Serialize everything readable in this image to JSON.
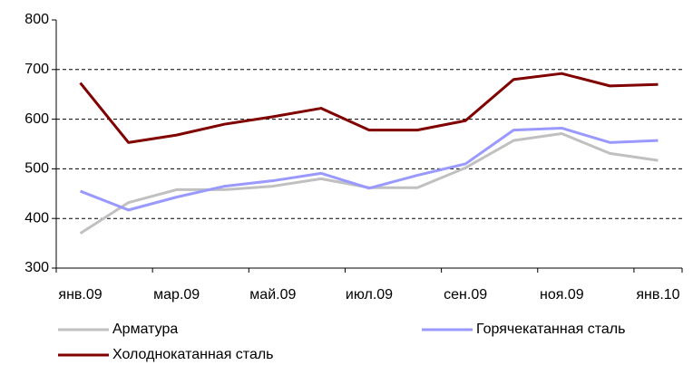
{
  "chart_data": {
    "type": "line",
    "categories": [
      "янв.09",
      null,
      "мар.09",
      null,
      "май.09",
      null,
      "июл.09",
      null,
      "сен.09",
      null,
      "ноя.09",
      null,
      "янв.10"
    ],
    "series": [
      {
        "name": "Арматура",
        "color": "#c0c0c0",
        "values": [
          370,
          432,
          458,
          458,
          465,
          480,
          462,
          462,
          502,
          557,
          571,
          531,
          517
        ]
      },
      {
        "name": "Горячекатанная сталь",
        "color": "#9999ff",
        "values": [
          455,
          417,
          443,
          465,
          476,
          491,
          461,
          487,
          510,
          578,
          582,
          553,
          557
        ]
      },
      {
        "name": "Холоднокатанная сталь",
        "color": "#800000",
        "values": [
          673,
          553,
          568,
          590,
          605,
          622,
          578,
          578,
          597,
          680,
          692,
          667,
          670
        ]
      }
    ],
    "ylim": [
      300,
      800
    ],
    "yticks": [
      300,
      400,
      500,
      600,
      700,
      800
    ],
    "grid": true,
    "legend": "bottom"
  }
}
